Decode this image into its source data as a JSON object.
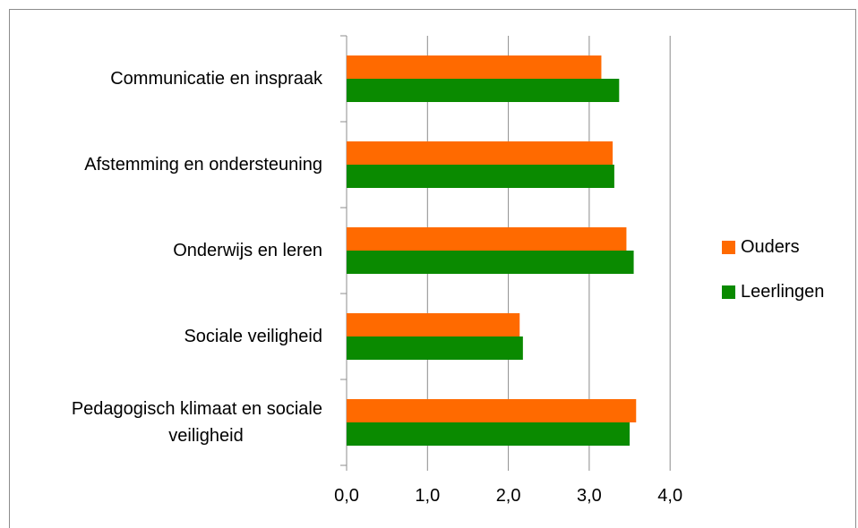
{
  "chart_data": {
    "type": "bar",
    "orientation": "horizontal",
    "title": "",
    "xlabel": "",
    "ylabel": "",
    "xlim": [
      0,
      4
    ],
    "x_ticks": [
      "0,0",
      "1,0",
      "2,0",
      "3,0",
      "4,0"
    ],
    "grid": true,
    "legend_position": "right",
    "categories": [
      "Communicatie en inspraak",
      "Afstemming en ondersteuning",
      "Onderwijs en leren",
      "Sociale veiligheid",
      "Pedagogisch klimaat en sociale veiligheid"
    ],
    "category_lines": [
      [
        "Communicatie en inspraak"
      ],
      [
        "Afstemming en ondersteuning"
      ],
      [
        "Onderwijs en leren"
      ],
      [
        "Sociale veiligheid"
      ],
      [
        "Pedagogisch klimaat en sociale",
        "veiligheid"
      ]
    ],
    "series": [
      {
        "name": "Ouders",
        "color": "#ff6a00",
        "values": [
          3.15,
          3.29,
          3.46,
          2.14,
          3.58
        ]
      },
      {
        "name": "Leerlingen",
        "color": "#0a8a00",
        "values": [
          3.37,
          3.31,
          3.55,
          2.18,
          3.5
        ]
      }
    ]
  }
}
